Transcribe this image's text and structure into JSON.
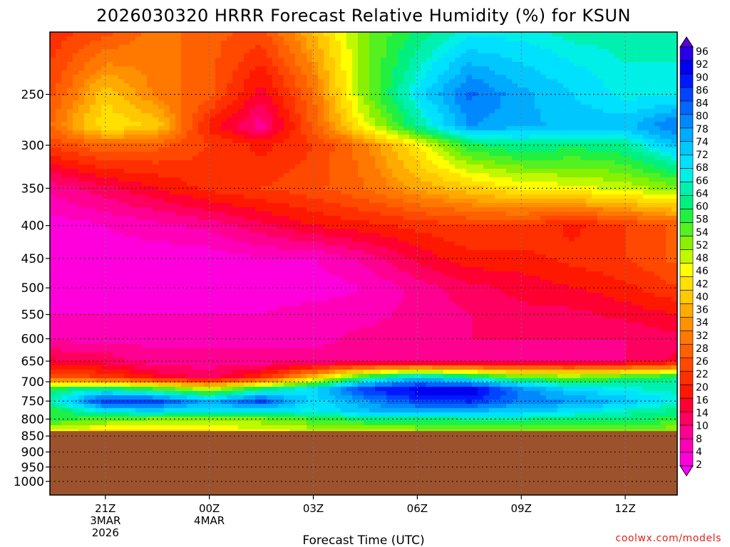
{
  "chart_data": {
    "type": "heatmap",
    "title": "2026030320 HRRR Forecast Relative Humidity (%) for KSUN",
    "xlabel": "Forecast Time (UTC)",
    "ylabel": "",
    "credit": "coolwx.com/models",
    "y_scale": "log",
    "y_reversed": true,
    "y_range_hPa": [
      1050,
      200
    ],
    "y_ticks": [
      250,
      300,
      350,
      400,
      450,
      500,
      550,
      600,
      650,
      700,
      750,
      800,
      850,
      900,
      950,
      1000
    ],
    "x_range_hours": [
      -1.6,
      16.5
    ],
    "x_ticks": [
      {
        "hour": 0,
        "lines": [
          "21Z",
          "3MAR",
          "2026"
        ]
      },
      {
        "hour": 3,
        "lines": [
          "00Z",
          "4MAR"
        ]
      },
      {
        "hour": 6,
        "lines": [
          "03Z"
        ]
      },
      {
        "hour": 9,
        "lines": [
          "06Z"
        ]
      },
      {
        "hour": 12,
        "lines": [
          "09Z"
        ]
      },
      {
        "hour": 15,
        "lines": [
          "12Z"
        ]
      }
    ],
    "grid": true,
    "surface_pressure_hPa": 835,
    "surface_color": "#9c532d",
    "colorbar_labels": [
      "96",
      "92",
      "90",
      "86",
      "84",
      "80",
      "78",
      "74",
      "72",
      "68",
      "66",
      "64",
      "60",
      "58",
      "54",
      "52",
      "48",
      "46",
      "42",
      "40",
      "36",
      "34",
      "32",
      "28",
      "26",
      "22",
      "20",
      "16",
      "14",
      "10",
      "8",
      "4",
      "2"
    ],
    "colorbar_colors": [
      "#5a00d8",
      "#2a00e8",
      "#0000f0",
      "#0018ff",
      "#0044ff",
      "#0066ff",
      "#0088ff",
      "#00aaff",
      "#00c8ff",
      "#00e0ff",
      "#00f0e8",
      "#00f0b0",
      "#00f080",
      "#22f040",
      "#55f020",
      "#88f000",
      "#c0f800",
      "#ffff00",
      "#ffe000",
      "#ffc800",
      "#ffaa00",
      "#ff9000",
      "#ff7800",
      "#ff6000",
      "#ff4800",
      "#ff3000",
      "#ff1800",
      "#ff0030",
      "#ff0060",
      "#ff0090",
      "#ff00b8",
      "#ff00dd",
      "#ff00ff"
    ],
    "rh_samples": {
      "x_hours": [
        -1.6,
        0,
        1.5,
        3,
        4.5,
        6,
        7.5,
        9,
        10.5,
        12,
        13.5,
        15,
        16.5
      ],
      "levels_hPa": [
        200,
        250,
        280,
        300,
        350,
        400,
        450,
        500,
        550,
        600,
        650,
        690,
        720,
        750,
        780,
        800,
        835
      ],
      "rh": [
        [
          22,
          26,
          32,
          28,
          26,
          38,
          52,
          60,
          66,
          66,
          64,
          64,
          64
        ],
        [
          26,
          40,
          32,
          28,
          16,
          30,
          52,
          68,
          80,
          74,
          70,
          66,
          66
        ],
        [
          30,
          44,
          40,
          20,
          10,
          28,
          46,
          62,
          76,
          74,
          72,
          72,
          80
        ],
        [
          24,
          30,
          28,
          24,
          20,
          24,
          32,
          44,
          58,
          62,
          60,
          62,
          72
        ],
        [
          10,
          14,
          18,
          22,
          24,
          26,
          30,
          36,
          40,
          44,
          46,
          48,
          52
        ],
        [
          4,
          6,
          8,
          10,
          14,
          18,
          20,
          22,
          24,
          24,
          20,
          24,
          28
        ],
        [
          4,
          4,
          4,
          4,
          6,
          6,
          10,
          16,
          20,
          20,
          22,
          24,
          28
        ],
        [
          4,
          4,
          4,
          4,
          4,
          4,
          6,
          10,
          14,
          16,
          18,
          20,
          24
        ],
        [
          6,
          6,
          6,
          6,
          6,
          8,
          8,
          10,
          12,
          14,
          14,
          16,
          18
        ],
        [
          8,
          8,
          8,
          8,
          8,
          8,
          10,
          10,
          12,
          12,
          12,
          12,
          14
        ],
        [
          16,
          14,
          10,
          10,
          10,
          10,
          10,
          10,
          10,
          10,
          10,
          12,
          16
        ],
        [
          28,
          24,
          18,
          14,
          22,
          40,
          60,
          72,
          64,
          56,
          54,
          58,
          62
        ],
        [
          60,
          64,
          58,
          50,
          62,
          70,
          86,
          90,
          92,
          78,
          70,
          66,
          64
        ],
        [
          62,
          86,
          84,
          74,
          84,
          68,
          76,
          84,
          86,
          78,
          76,
          72,
          66
        ],
        [
          56,
          66,
          68,
          66,
          66,
          66,
          72,
          74,
          72,
          70,
          68,
          64,
          60
        ],
        [
          58,
          54,
          52,
          50,
          52,
          56,
          60,
          60,
          62,
          62,
          60,
          60,
          58
        ],
        [
          46,
          42,
          42,
          44,
          46,
          48,
          48,
          50,
          52,
          52,
          52,
          52,
          50
        ]
      ]
    }
  }
}
